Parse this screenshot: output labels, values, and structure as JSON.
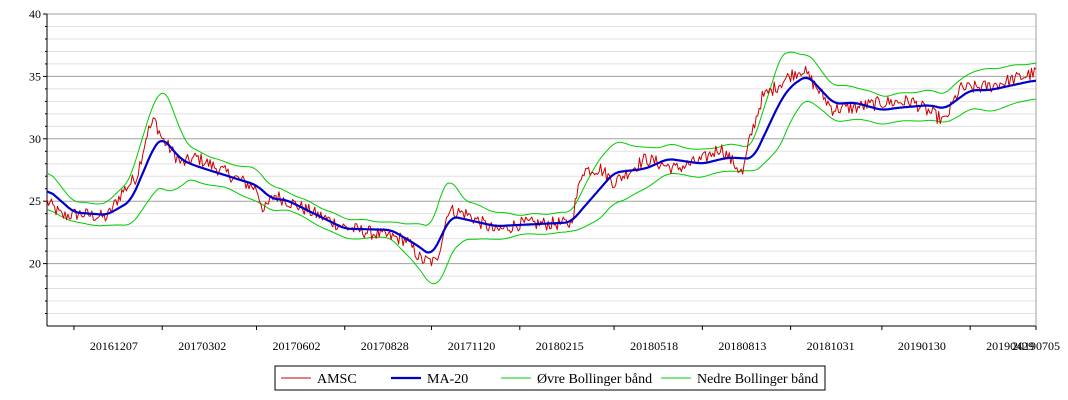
{
  "chart_data": {
    "type": "line",
    "y_ticks": [
      20,
      25,
      30,
      35,
      40
    ],
    "ylim": [
      15,
      40
    ],
    "x_tick_labels": [
      "20161207",
      "20170302",
      "20170602",
      "20170828",
      "20171120",
      "20180215",
      "20180518",
      "20180813",
      "20181031",
      "20190130",
      "20190429",
      "20190705"
    ],
    "x_tick_positions": [
      18,
      77,
      140,
      199,
      257,
      316,
      379,
      438,
      497,
      558,
      617,
      661
    ],
    "n_points": 662,
    "grid": true,
    "legend_placement": "bottom",
    "anchors_ma20": [
      [
        0,
        26
      ],
      [
        18,
        24.1
      ],
      [
        40,
        23.9
      ],
      [
        56,
        25
      ],
      [
        72,
        29.5
      ],
      [
        77,
        30.1
      ],
      [
        90,
        28.3
      ],
      [
        100,
        27.8
      ],
      [
        140,
        26.3
      ],
      [
        150,
        25.2
      ],
      [
        160,
        25.1
      ],
      [
        199,
        22.8
      ],
      [
        230,
        22.7
      ],
      [
        247,
        21.5
      ],
      [
        257,
        20.6
      ],
      [
        270,
        23.8
      ],
      [
        300,
        23
      ],
      [
        316,
        23.1
      ],
      [
        350,
        23.3
      ],
      [
        379,
        27.3
      ],
      [
        400,
        27.6
      ],
      [
        415,
        28.4
      ],
      [
        438,
        28
      ],
      [
        455,
        28.5
      ],
      [
        472,
        28.4
      ],
      [
        490,
        33
      ],
      [
        497,
        34.2
      ],
      [
        508,
        35.1
      ],
      [
        526,
        32.8
      ],
      [
        540,
        32.9
      ],
      [
        558,
        32.3
      ],
      [
        570,
        32.5
      ],
      [
        590,
        32.7
      ],
      [
        600,
        32.4
      ],
      [
        617,
        33.9
      ],
      [
        630,
        33.9
      ],
      [
        661,
        34.7
      ]
    ],
    "anchors_band": [
      [
        0,
        1.5
      ],
      [
        20,
        0.8
      ],
      [
        40,
        0.9
      ],
      [
        55,
        1.8
      ],
      [
        70,
        3.6
      ],
      [
        80,
        3.9
      ],
      [
        95,
        1.3
      ],
      [
        120,
        1
      ],
      [
        140,
        1.3
      ],
      [
        160,
        0.7
      ],
      [
        200,
        0.8
      ],
      [
        230,
        0.6
      ],
      [
        255,
        2.2
      ],
      [
        265,
        3.6
      ],
      [
        280,
        1.5
      ],
      [
        316,
        0.8
      ],
      [
        350,
        0.8
      ],
      [
        370,
        2.5
      ],
      [
        385,
        2.3
      ],
      [
        410,
        1.2
      ],
      [
        430,
        1.1
      ],
      [
        470,
        1
      ],
      [
        490,
        3.6
      ],
      [
        505,
        1.9
      ],
      [
        520,
        1.5
      ],
      [
        560,
        1.1
      ],
      [
        600,
        1.2
      ],
      [
        630,
        1.7
      ],
      [
        661,
        1.4
      ]
    ],
    "anchors_price": [
      [
        0,
        25
      ],
      [
        10,
        23.8
      ],
      [
        22,
        24
      ],
      [
        40,
        23.7
      ],
      [
        50,
        25.7
      ],
      [
        60,
        27
      ],
      [
        67,
        30.5
      ],
      [
        72,
        31.5
      ],
      [
        77,
        30
      ],
      [
        90,
        28
      ],
      [
        100,
        28.5
      ],
      [
        140,
        26
      ],
      [
        145,
        24.2
      ],
      [
        152,
        25.5
      ],
      [
        199,
        22.9
      ],
      [
        240,
        21.9
      ],
      [
        250,
        20.3
      ],
      [
        260,
        20.1
      ],
      [
        265,
        22.5
      ],
      [
        268,
        24.3
      ],
      [
        280,
        24
      ],
      [
        300,
        22.6
      ],
      [
        316,
        23.2
      ],
      [
        350,
        23.2
      ],
      [
        358,
        27.5
      ],
      [
        370,
        27.6
      ],
      [
        379,
        26.5
      ],
      [
        400,
        28.4
      ],
      [
        420,
        27.6
      ],
      [
        438,
        28.3
      ],
      [
        450,
        29.3
      ],
      [
        465,
        27.2
      ],
      [
        470,
        30.1
      ],
      [
        478,
        33.3
      ],
      [
        497,
        35.1
      ],
      [
        505,
        35.6
      ],
      [
        520,
        33.2
      ],
      [
        525,
        32.4
      ],
      [
        540,
        32.5
      ],
      [
        558,
        32.9
      ],
      [
        578,
        33
      ],
      [
        600,
        31.4
      ],
      [
        610,
        34
      ],
      [
        630,
        34.2
      ],
      [
        661,
        35.3
      ]
    ],
    "series": [
      {
        "name": "AMSC",
        "color": "#cc0000"
      },
      {
        "name": "MA-20",
        "color": "#0000cc"
      },
      {
        "name": "Øvre Bollinger bånd",
        "color": "#00cc00"
      },
      {
        "name": "Nedre Bollinger bånd",
        "color": "#00cc00"
      }
    ]
  }
}
